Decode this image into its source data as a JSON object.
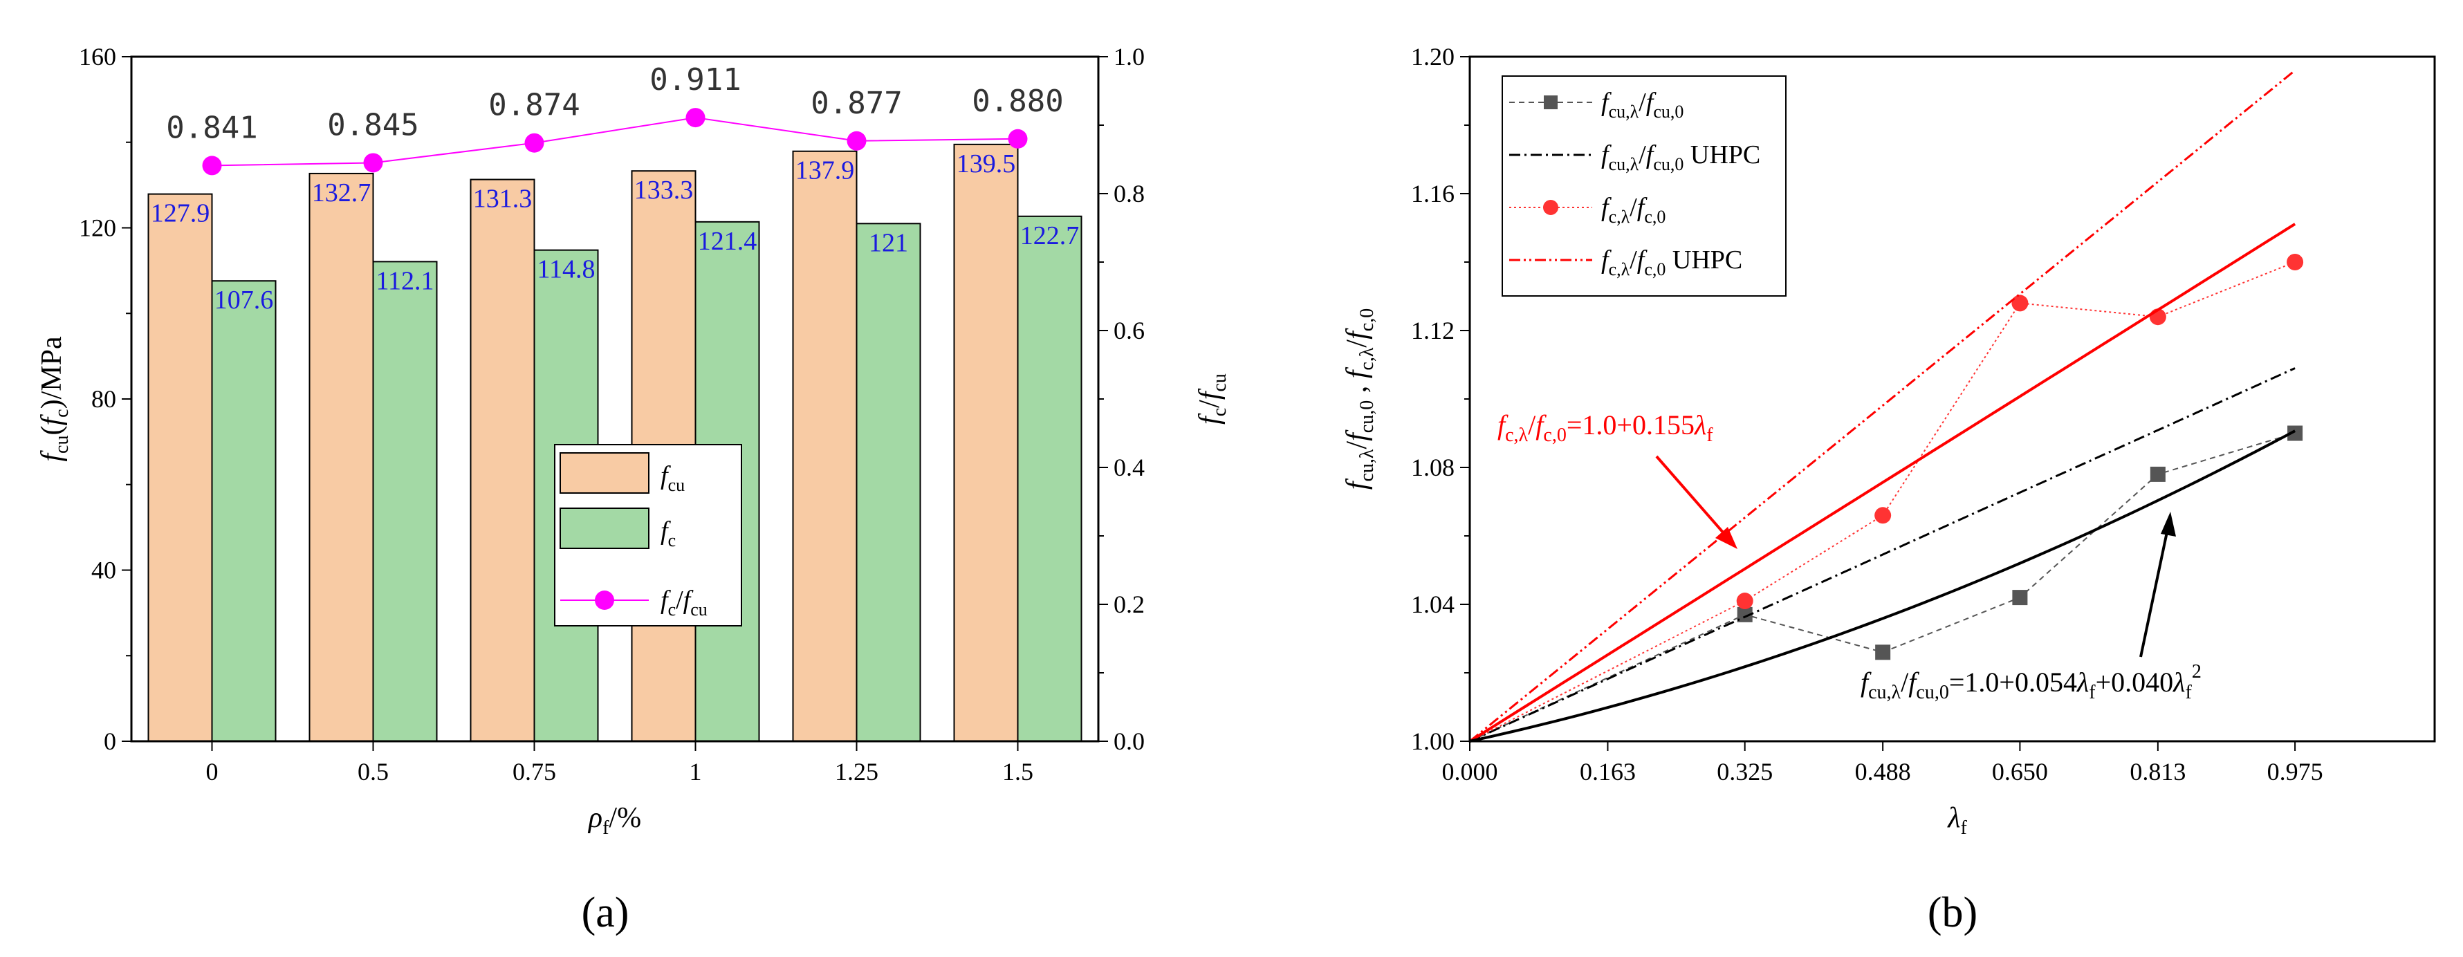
{
  "chart_data": [
    {
      "type": "bar",
      "panel_label": "(a)",
      "categories": [
        "0",
        "0.5",
        "0.75",
        "1",
        "1.25",
        "1.5"
      ],
      "xlabel": "ρf/%",
      "ylabel": "fcu(fc)/MPa",
      "y2label": "fc/fcu",
      "ylim": [
        0,
        160
      ],
      "yticks": [
        "0",
        "40",
        "80",
        "120",
        "160"
      ],
      "y2lim": [
        0,
        1.0
      ],
      "y2ticks": [
        "0.0",
        "0.2",
        "0.4",
        "0.6",
        "0.8",
        "1.0"
      ],
      "series": [
        {
          "name": "fcu",
          "values": [
            127.9,
            132.7,
            131.3,
            133.3,
            137.9,
            139.5
          ],
          "labels": [
            "127.9",
            "132.7",
            "131.3",
            "133.3",
            "137.9",
            "139.5"
          ],
          "color": "#f8cba4"
        },
        {
          "name": "fc",
          "values": [
            107.6,
            112.1,
            114.8,
            121.4,
            121,
            122.7
          ],
          "labels": [
            "107.6",
            "112.1",
            "114.8",
            "121.4",
            "121",
            "122.7"
          ],
          "color": "#a3d9a5"
        },
        {
          "name": "fc/fcu",
          "axis": "right",
          "values": [
            0.841,
            0.845,
            0.874,
            0.911,
            0.877,
            0.88
          ],
          "labels": [
            "0.841",
            "0.845",
            "0.874",
            "0.911",
            "0.877",
            "0.880"
          ],
          "color": "#ff00ff"
        }
      ],
      "legend_position": "lower-right"
    },
    {
      "type": "line",
      "panel_label": "(b)",
      "xlabel": "λf",
      "ylabel": "fcu,λ/fcu,0 , fc,λ/fc,0",
      "xlim": [
        0,
        1.14
      ],
      "xticks": [
        "0.000",
        "0.163",
        "0.325",
        "0.488",
        "0.650",
        "0.813",
        "0.975"
      ],
      "ylim": [
        1.0,
        1.2
      ],
      "yticks": [
        "1.00",
        "1.04",
        "1.08",
        "1.12",
        "1.16",
        "1.20"
      ],
      "series": [
        {
          "name": "fcu,λ/fcu,0",
          "style": "dashed-square",
          "color": "#555555",
          "x": [
            0,
            0.325,
            0.488,
            0.65,
            0.813,
            0.975
          ],
          "y": [
            1.0,
            1.037,
            1.026,
            1.042,
            1.078,
            1.09
          ]
        },
        {
          "name": "fcu,λ/fcu,0 UHPC",
          "style": "dash-dot",
          "color": "#000000",
          "x": [
            0,
            0.975
          ],
          "y": [
            1.0,
            1.109
          ]
        },
        {
          "name": "fc,λ/fc,0",
          "style": "dotted-circle",
          "color": "#ff3333",
          "x": [
            0,
            0.325,
            0.488,
            0.65,
            0.813,
            0.975
          ],
          "y": [
            1.0,
            1.041,
            1.066,
            1.128,
            1.124,
            1.14
          ]
        },
        {
          "name": "fc,λ/fc,0 UHPC",
          "style": "dash-dot-dot",
          "color": "#ff0000",
          "x": [
            0,
            0.975
          ],
          "y": [
            1.0,
            1.196
          ]
        }
      ],
      "fits": [
        {
          "label": "fc,λ/fc,0=1.0+0.155λf",
          "color": "#ff0000",
          "a": 0.155,
          "b": 0
        },
        {
          "label": "fcu,λ/fcu,0=1.0+0.054λf+0.040λf2",
          "color": "#000000",
          "a": 0.054,
          "b": 0.04
        }
      ],
      "legend_position": "top-left"
    }
  ]
}
